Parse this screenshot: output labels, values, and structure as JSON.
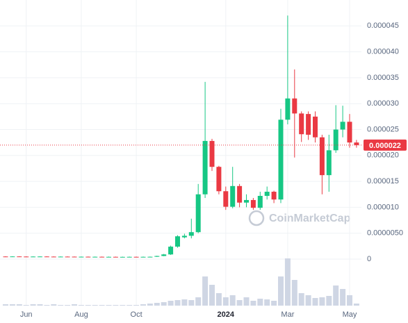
{
  "chart_data": {
    "type": "candlestick",
    "watermark": "CoinMarketCap",
    "categories": [
      null,
      null,
      null,
      "Jun",
      null,
      null,
      null,
      null,
      null,
      null,
      null,
      "Aug",
      null,
      null,
      null,
      null,
      null,
      null,
      null,
      "Oct",
      null,
      null,
      null,
      null,
      null,
      null,
      null,
      null,
      null,
      null,
      null,
      null,
      "2024",
      null,
      null,
      null,
      null,
      null,
      null,
      null,
      null,
      "Mar",
      null,
      null,
      null,
      null,
      null,
      null,
      null,
      null,
      "May",
      null
    ],
    "open": [
      5e-07,
      4.8e-07,
      5.1e-07,
      4.9e-07,
      4.7e-07,
      4.9e-07,
      5e-07,
      4.8e-07,
      4.6e-07,
      4.8e-07,
      4.7e-07,
      4.5e-07,
      4.6e-07,
      4.4e-07,
      4.5e-07,
      4.3e-07,
      4.4e-07,
      4.2e-07,
      4.3e-07,
      4.4e-07,
      4.2e-07,
      4.4e-07,
      4.5e-07,
      6e-07,
      9e-07,
      2.4e-06,
      4.2e-06,
      4.5e-06,
      5.2e-06,
      1.25e-05,
      2.28e-05,
      1.78e-05,
      1.31e-05,
      1.01e-05,
      1.41e-05,
      1.09e-05,
      1.14e-05,
      9.9e-06,
      1.22e-05,
      1.3e-05,
      1.15e-05,
      2.69e-05,
      3.1e-05,
      2.81e-05,
      2.8e-05,
      2.75e-05,
      2.35e-05,
      1.62e-05,
      2.1e-05,
      2.5e-05,
      2.65e-05,
      2.25e-05
    ],
    "high": [
      5.4e-07,
      5.5e-07,
      5.5e-07,
      5.3e-07,
      5.3e-07,
      5.4e-07,
      5.4e-07,
      5.2e-07,
      5.2e-07,
      5.2e-07,
      5.1e-07,
      5e-07,
      5e-07,
      4.9e-07,
      4.9e-07,
      4.8e-07,
      4.8e-07,
      4.7e-07,
      4.8e-07,
      4.8e-07,
      4.8e-07,
      4.9e-07,
      6.5e-07,
      1e-06,
      2.6e-06,
      4.6e-06,
      4.9e-06,
      7.8e-06,
      1.45e-05,
      3.42e-05,
      2.32e-05,
      1.8e-05,
      1.4e-05,
      1.78e-05,
      1.45e-05,
      1.25e-05,
      1.18e-05,
      1.3e-05,
      1.4e-05,
      1.32e-05,
      2.9e-05,
      4.7e-05,
      3.66e-05,
      2.85e-05,
      2.85e-05,
      2.85e-05,
      2.4e-05,
      2.4e-05,
      2.97e-05,
      2.96e-05,
      2.8e-05,
      2.3e-05
    ],
    "low": [
      4.4e-07,
      4.4e-07,
      4.5e-07,
      4.3e-07,
      4.3e-07,
      4.5e-07,
      4.4e-07,
      4.2e-07,
      4.2e-07,
      4.3e-07,
      4.1e-07,
      4.1e-07,
      4e-07,
      4e-07,
      3.9e-07,
      3.9e-07,
      3.8e-07,
      3.8e-07,
      3.9e-07,
      3.8e-07,
      3.8e-07,
      4e-07,
      4.2e-07,
      5.5e-07,
      8e-07,
      2.2e-06,
      4e-06,
      4e-06,
      5e-06,
      1.18e-05,
      1.7e-05,
      1.25e-05,
      9.5e-06,
      9.8e-06,
      1e-05,
      1e-05,
      9.5e-06,
      9.5e-06,
      1.15e-05,
      1.08e-05,
      1.08e-05,
      2.6e-05,
      1.96e-05,
      2.26e-05,
      2.3e-05,
      2.25e-05,
      1.25e-05,
      1.3e-05,
      2.05e-05,
      2.35e-05,
      2.15e-05,
      2.15e-05
    ],
    "close": [
      4.8e-07,
      5.1e-07,
      4.9e-07,
      4.7e-07,
      4.9e-07,
      5e-07,
      4.8e-07,
      4.6e-07,
      4.8e-07,
      4.7e-07,
      4.5e-07,
      4.6e-07,
      4.4e-07,
      4.5e-07,
      4.3e-07,
      4.4e-07,
      4.2e-07,
      4.3e-07,
      4.4e-07,
      4.2e-07,
      4.4e-07,
      4.5e-07,
      6e-07,
      9e-07,
      2.4e-06,
      4.4e-06,
      4.5e-06,
      5.2e-06,
      1.25e-05,
      2.28e-05,
      1.78e-05,
      1.31e-05,
      1.01e-05,
      1.41e-05,
      1.09e-05,
      1.14e-05,
      9.9e-06,
      1.22e-05,
      1.3e-05,
      1.15e-05,
      2.69e-05,
      3.1e-05,
      2.81e-05,
      2.41e-05,
      2.4e-05,
      2.35e-05,
      1.62e-05,
      2.1e-05,
      2.5e-05,
      2.65e-05,
      2.25e-05,
      2.2e-05
    ],
    "volumes": [
      2,
      2,
      2,
      1,
      2,
      2,
      1,
      2,
      1,
      1,
      2,
      1,
      1,
      1,
      1,
      1,
      1,
      1,
      1,
      1,
      2,
      3,
      4,
      5,
      7,
      8,
      9,
      8,
      12,
      42,
      30,
      18,
      12,
      15,
      8,
      12,
      7,
      10,
      9,
      7,
      42,
      68,
      37,
      18,
      15,
      11,
      12,
      14,
      29,
      24,
      15,
      3
    ],
    "up_color": "#16c784",
    "down_color": "#ea3943",
    "volume_color": "#cfd6e4",
    "current_price": 2.2e-05,
    "ylim": [
      0,
      5e-05
    ],
    "yticks": [
      0,
      {
        "value": 5e-06,
        "label": "0.0000050"
      },
      {
        "value": 1e-05,
        "label": "0.000010"
      },
      1.5e-05,
      {
        "value": 2e-05,
        "label": "0.000020"
      },
      2.5e-05,
      {
        "value": 3e-05,
        "label": "0.000030"
      },
      3.5e-05,
      {
        "value": 4e-05,
        "label": "0.000040"
      },
      4.5e-05
    ],
    "grid": true
  }
}
